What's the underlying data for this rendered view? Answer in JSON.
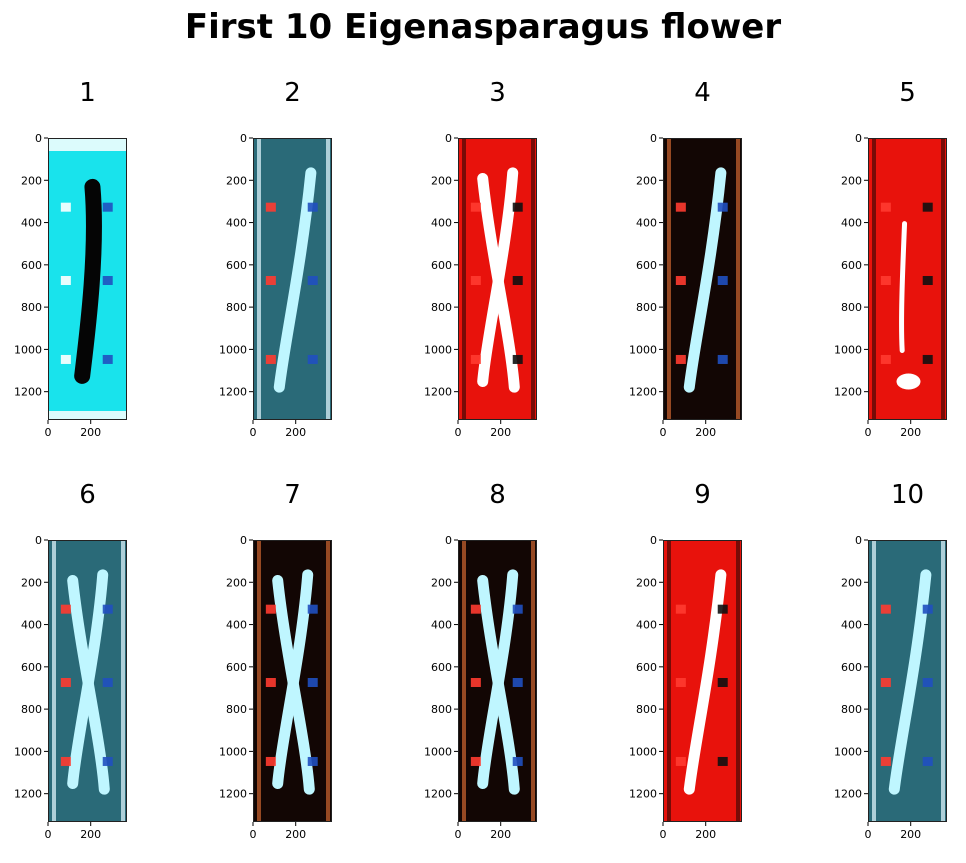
{
  "chart_data": {
    "type": "image-grid",
    "title": "First 10 Eigenasparagus flower",
    "image_height": 1334,
    "image_width": 370,
    "panels": [
      {
        "label": "1",
        "palette": "cyan",
        "pattern": "single-dark"
      },
      {
        "label": "2",
        "palette": "mixed",
        "pattern": "diagonal-light"
      },
      {
        "label": "3",
        "palette": "red",
        "pattern": "cross-light"
      },
      {
        "label": "4",
        "palette": "dark",
        "pattern": "diagonal-light"
      },
      {
        "label": "5",
        "palette": "red",
        "pattern": "single-light"
      },
      {
        "label": "6",
        "palette": "mixed",
        "pattern": "cross-light"
      },
      {
        "label": "7",
        "palette": "dark",
        "pattern": "cross-light"
      },
      {
        "label": "8",
        "palette": "dark",
        "pattern": "cross-light"
      },
      {
        "label": "9",
        "palette": "red",
        "pattern": "diagonal-light"
      },
      {
        "label": "10",
        "palette": "mixed",
        "pattern": "diagonal-light"
      }
    ],
    "y_ticks": [
      "0",
      "200",
      "400",
      "600",
      "800",
      "1000",
      "1200"
    ],
    "y_tick_values": [
      0,
      200,
      400,
      600,
      800,
      1000,
      1200
    ],
    "x_ticks": [
      "0",
      "200"
    ],
    "x_tick_values": [
      0,
      200
    ],
    "colors": {
      "cyan": "#19e3ec",
      "red": "#e8120c",
      "dark": "#120604",
      "white": "#ffffff",
      "blue": "#2aa0e0",
      "teal": "#2a6a78"
    }
  }
}
